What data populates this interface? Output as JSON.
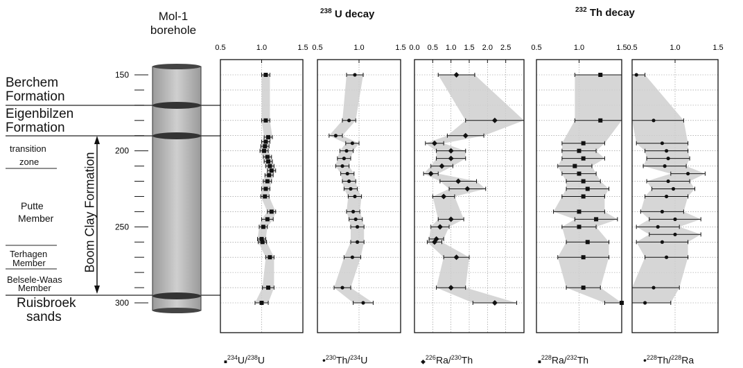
{
  "well": {
    "name_line1": "Mol-1",
    "name_line2": "borehole"
  },
  "panel_titles": {
    "u_iso": "238",
    "u_text": " U decay",
    "th_iso": "232",
    "th_text": " Th decay"
  },
  "formations": [
    {
      "label1": "Berchem",
      "label2": "Formation"
    },
    {
      "label1": "Eigenbilzen",
      "label2": "Formation"
    },
    {
      "label1": "transition",
      "label2": "zone"
    },
    {
      "label1": "Putte",
      "label2": "Member"
    },
    {
      "label1": "Terhagen",
      "label2": "Member"
    },
    {
      "label1": "Belsele-Waas",
      "label2": "Member"
    },
    {
      "label1": "Ruisbroek",
      "label2": "sands"
    }
  ],
  "boom_clay": "Boom Clay Formation",
  "legend": [
    {
      "marker": "■",
      "sup1": "234",
      "t1": "U/",
      "sup2": "238",
      "t2": "U"
    },
    {
      "marker": "•",
      "sup1": "230",
      "t1": "Th/",
      "sup2": "234",
      "t2": "U"
    },
    {
      "marker": "◆",
      "sup1": "226",
      "t1": "Ra/",
      "sup2": "230",
      "t2": "Th"
    },
    {
      "marker": "■",
      "sup1": "228",
      "t1": "Ra/",
      "sup2": "232",
      "t2": "Th"
    },
    {
      "marker": "•",
      "sup1": "228",
      "t1": "Th/",
      "sup2": "228",
      "t2": "Ra"
    }
  ],
  "chart_data": {
    "type": "scatter",
    "y_axis": {
      "label": "",
      "ticks": [
        150,
        200,
        250,
        300
      ],
      "ylim": [
        140,
        310
      ],
      "inverted": true
    },
    "grid": true,
    "panels": [
      {
        "name": "234U/238U",
        "marker": "square",
        "xlim": [
          0.5,
          1.5
        ],
        "x_ticks": [
          "0.5",
          "1.0",
          "1.5"
        ],
        "points": [
          {
            "depth": 150,
            "value": 1.05,
            "err": 0.05
          },
          {
            "depth": 180,
            "value": 1.05,
            "err": 0.05
          },
          {
            "depth": 191,
            "value": 1.08,
            "err": 0.05
          },
          {
            "depth": 194,
            "value": 1.05,
            "err": 0.05
          },
          {
            "depth": 197,
            "value": 1.04,
            "err": 0.05
          },
          {
            "depth": 200,
            "value": 1.03,
            "err": 0.05
          },
          {
            "depth": 204,
            "value": 1.07,
            "err": 0.05
          },
          {
            "depth": 207,
            "value": 1.08,
            "err": 0.05
          },
          {
            "depth": 210,
            "value": 1.1,
            "err": 0.05
          },
          {
            "depth": 213,
            "value": 1.12,
            "err": 0.05
          },
          {
            "depth": 216,
            "value": 1.09,
            "err": 0.05
          },
          {
            "depth": 220,
            "value": 1.07,
            "err": 0.05
          },
          {
            "depth": 225,
            "value": 1.05,
            "err": 0.05
          },
          {
            "depth": 230,
            "value": 1.04,
            "err": 0.05
          },
          {
            "depth": 240,
            "value": 1.12,
            "err": 0.05
          },
          {
            "depth": 245,
            "value": 1.07,
            "err": 0.07
          },
          {
            "depth": 250,
            "value": 1.02,
            "err": 0.05
          },
          {
            "depth": 258,
            "value": 1.0,
            "err": 0.05
          },
          {
            "depth": 260,
            "value": 1.01,
            "err": 0.05
          },
          {
            "depth": 270,
            "value": 1.1,
            "err": 0.05
          },
          {
            "depth": 290,
            "value": 1.08,
            "err": 0.07
          },
          {
            "depth": 300,
            "value": 1.0,
            "err": 0.08
          }
        ]
      },
      {
        "name": "230Th/234U",
        "marker": "dot",
        "xlim": [
          0.5,
          1.5
        ],
        "x_ticks": [
          "0.5",
          "1.0",
          "1.5"
        ],
        "points": [
          {
            "depth": 150,
            "value": 0.95,
            "err": 0.1
          },
          {
            "depth": 180,
            "value": 0.88,
            "err": 0.08
          },
          {
            "depth": 190,
            "value": 0.72,
            "err": 0.08
          },
          {
            "depth": 195,
            "value": 0.92,
            "err": 0.08
          },
          {
            "depth": 200,
            "value": 0.85,
            "err": 0.08
          },
          {
            "depth": 205,
            "value": 0.82,
            "err": 0.08
          },
          {
            "depth": 210,
            "value": 0.8,
            "err": 0.08
          },
          {
            "depth": 215,
            "value": 0.86,
            "err": 0.08
          },
          {
            "depth": 220,
            "value": 0.88,
            "err": 0.08
          },
          {
            "depth": 225,
            "value": 0.9,
            "err": 0.08
          },
          {
            "depth": 230,
            "value": 0.95,
            "err": 0.08
          },
          {
            "depth": 240,
            "value": 0.93,
            "err": 0.08
          },
          {
            "depth": 245,
            "value": 0.96,
            "err": 0.08
          },
          {
            "depth": 250,
            "value": 0.98,
            "err": 0.08
          },
          {
            "depth": 260,
            "value": 0.98,
            "err": 0.08
          },
          {
            "depth": 270,
            "value": 0.92,
            "err": 0.1
          },
          {
            "depth": 290,
            "value": 0.8,
            "err": 0.1
          },
          {
            "depth": 300,
            "value": 1.05,
            "err": 0.12
          }
        ]
      },
      {
        "name": "226Ra/230Th",
        "marker": "diamond",
        "xlim": [
          0.0,
          3.0
        ],
        "x_ticks": [
          "0.0",
          "0.5",
          "1.0",
          "1.5",
          "2.0",
          "2.5"
        ],
        "points": [
          {
            "depth": 150,
            "value": 1.15,
            "err": 0.5
          },
          {
            "depth": 180,
            "value": 2.2,
            "err": 0.8
          },
          {
            "depth": 190,
            "value": 1.4,
            "err": 0.5
          },
          {
            "depth": 195,
            "value": 0.55,
            "err": 0.25
          },
          {
            "depth": 200,
            "value": 1.0,
            "err": 0.4
          },
          {
            "depth": 205,
            "value": 1.0,
            "err": 0.4
          },
          {
            "depth": 210,
            "value": 0.75,
            "err": 0.3
          },
          {
            "depth": 215,
            "value": 0.45,
            "err": 0.2
          },
          {
            "depth": 220,
            "value": 1.2,
            "err": 0.5
          },
          {
            "depth": 225,
            "value": 1.45,
            "err": 0.5
          },
          {
            "depth": 230,
            "value": 0.8,
            "err": 0.3
          },
          {
            "depth": 245,
            "value": 1.0,
            "err": 0.35
          },
          {
            "depth": 250,
            "value": 0.7,
            "err": 0.25
          },
          {
            "depth": 258,
            "value": 0.6,
            "err": 0.2
          },
          {
            "depth": 260,
            "value": 0.55,
            "err": 0.2
          },
          {
            "depth": 270,
            "value": 1.15,
            "err": 0.35
          },
          {
            "depth": 290,
            "value": 1.0,
            "err": 0.4
          },
          {
            "depth": 300,
            "value": 2.2,
            "err": 0.6
          }
        ]
      },
      {
        "name": "228Ra/232Th",
        "marker": "square",
        "xlim": [
          0.5,
          1.5
        ],
        "x_ticks": [
          "0.5",
          "1.0",
          "1.5"
        ],
        "points": [
          {
            "depth": 150,
            "value": 1.25,
            "err": 0.3
          },
          {
            "depth": 180,
            "value": 1.25,
            "err": 0.3
          },
          {
            "depth": 195,
            "value": 1.05,
            "err": 0.25
          },
          {
            "depth": 200,
            "value": 1.0,
            "err": 0.2
          },
          {
            "depth": 205,
            "value": 1.05,
            "err": 0.25
          },
          {
            "depth": 210,
            "value": 0.95,
            "err": 0.2
          },
          {
            "depth": 215,
            "value": 1.0,
            "err": 0.2
          },
          {
            "depth": 220,
            "value": 1.05,
            "err": 0.2
          },
          {
            "depth": 225,
            "value": 1.1,
            "err": 0.25
          },
          {
            "depth": 230,
            "value": 1.05,
            "err": 0.25
          },
          {
            "depth": 240,
            "value": 1.0,
            "err": 0.3
          },
          {
            "depth": 245,
            "value": 1.2,
            "err": 0.25
          },
          {
            "depth": 250,
            "value": 1.0,
            "err": 0.2
          },
          {
            "depth": 260,
            "value": 1.1,
            "err": 0.25
          },
          {
            "depth": 270,
            "value": 1.05,
            "err": 0.3
          },
          {
            "depth": 290,
            "value": 1.05,
            "err": 0.2
          },
          {
            "depth": 300,
            "value": 1.5,
            "err": 0.2
          }
        ]
      },
      {
        "name": "228Th/228Ra",
        "marker": "dot",
        "xlim": [
          0.5,
          1.5
        ],
        "x_ticks": [
          "0.5",
          "1.0",
          "1.5"
        ],
        "points": [
          {
            "depth": 150,
            "value": 0.55,
            "err": 0.1
          },
          {
            "depth": 180,
            "value": 0.75,
            "err": 0.35
          },
          {
            "depth": 195,
            "value": 0.85,
            "err": 0.3
          },
          {
            "depth": 200,
            "value": 0.9,
            "err": 0.25
          },
          {
            "depth": 205,
            "value": 0.92,
            "err": 0.25
          },
          {
            "depth": 210,
            "value": 0.88,
            "err": 0.25
          },
          {
            "depth": 215,
            "value": 1.15,
            "err": 0.2
          },
          {
            "depth": 220,
            "value": 0.92,
            "err": 0.25
          },
          {
            "depth": 225,
            "value": 0.98,
            "err": 0.25
          },
          {
            "depth": 230,
            "value": 0.9,
            "err": 0.25
          },
          {
            "depth": 240,
            "value": 0.85,
            "err": 0.25
          },
          {
            "depth": 245,
            "value": 1.0,
            "err": 0.3
          },
          {
            "depth": 250,
            "value": 0.8,
            "err": 0.25
          },
          {
            "depth": 255,
            "value": 1.0,
            "err": 0.3
          },
          {
            "depth": 260,
            "value": 0.85,
            "err": 0.3
          },
          {
            "depth": 270,
            "value": 0.9,
            "err": 0.25
          },
          {
            "depth": 290,
            "value": 0.75,
            "err": 0.3
          },
          {
            "depth": 300,
            "value": 0.65,
            "err": 0.3
          }
        ]
      }
    ]
  }
}
